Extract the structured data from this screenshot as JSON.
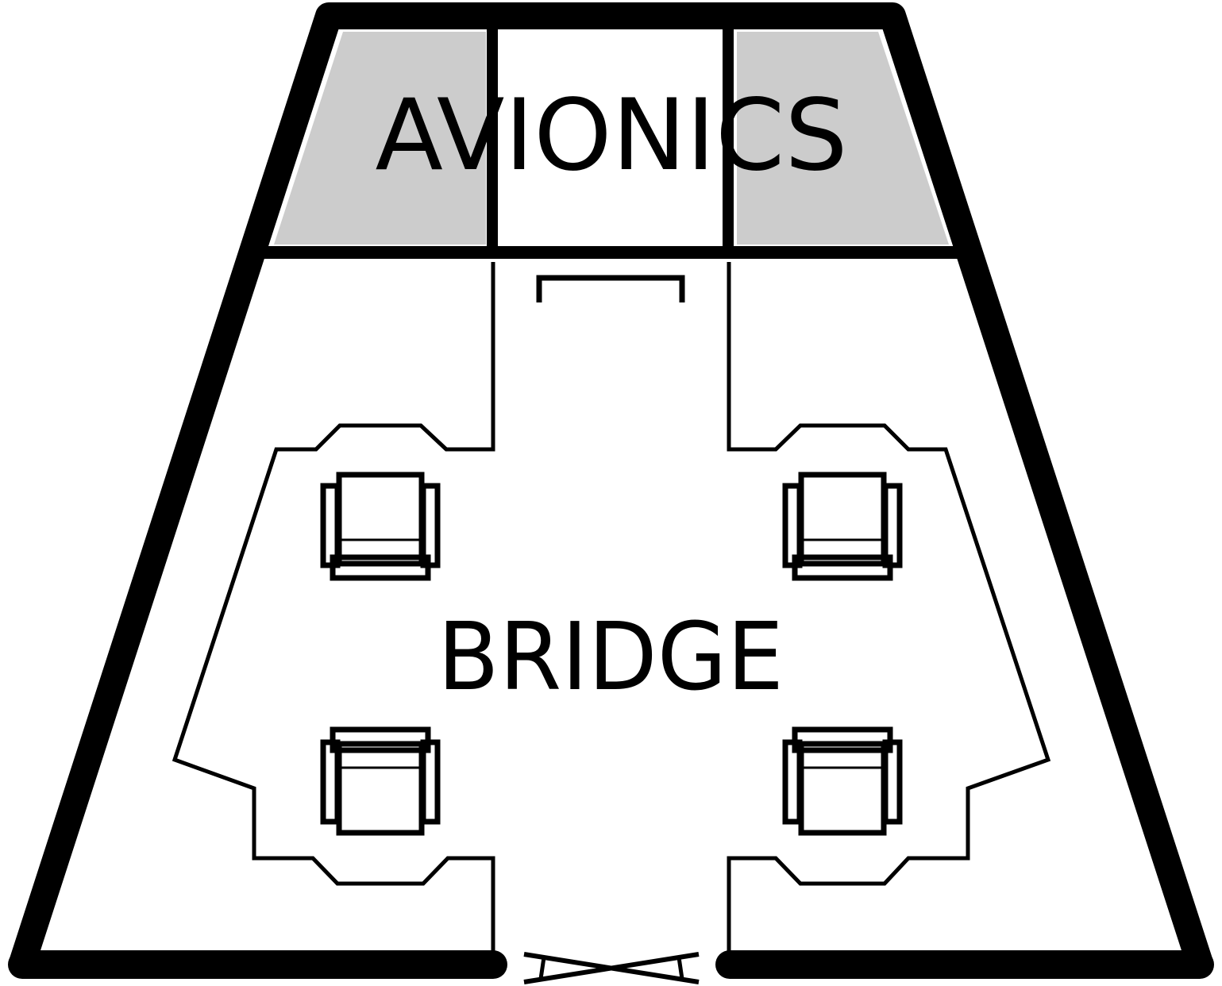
{
  "rooms": {
    "avionics": {
      "label": "AVIONICS",
      "fill": "#cccccc"
    },
    "bridge": {
      "label": "BRIDGE",
      "fill": "#ffffff"
    }
  },
  "colors": {
    "wall": "#000000",
    "background": "#ffffff"
  },
  "furniture": {
    "chairs": [
      {
        "name": "chair-front-left",
        "facing": "back"
      },
      {
        "name": "chair-front-right",
        "facing": "back"
      },
      {
        "name": "chair-rear-left",
        "facing": "front"
      },
      {
        "name": "chair-rear-right",
        "facing": "front"
      }
    ]
  },
  "doors": [
    {
      "name": "bridge-entrance-door",
      "type": "double-sliding"
    },
    {
      "name": "avionics-access-hatch",
      "type": "hatch"
    }
  ]
}
